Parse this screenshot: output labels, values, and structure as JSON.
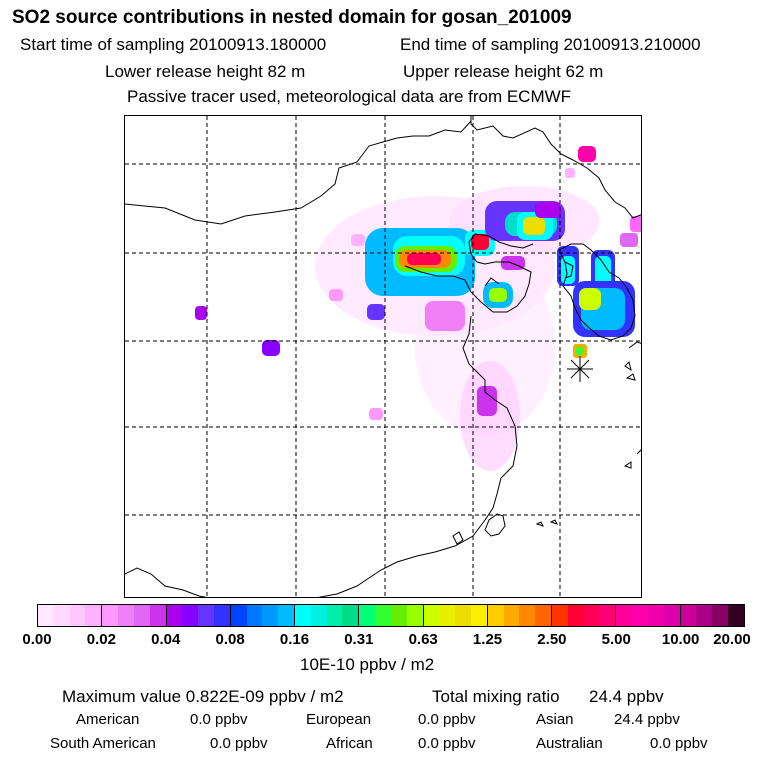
{
  "header": {
    "title": "SO2 source contributions in nested domain for gosan_201009",
    "start": "Start time of sampling 20100913.180000",
    "end": "End time of sampling 20100913.210000",
    "lower_release": "Lower release height   82 m",
    "upper_release": "Upper release height   62 m",
    "tracer_note": "Passive tracer used, meteorological data are from ECMWF"
  },
  "colors": {
    "border": "#000000",
    "coast": "#000000",
    "grid": "#000000",
    "receptor": "#000000",
    "bands": [
      [
        "#ffe8ff",
        "#ffd8ff",
        "#ffc6ff",
        "#ffb2ff"
      ],
      [
        "#ff99ff",
        "#f07ff8",
        "#e066f5",
        "#cc33ee"
      ],
      [
        "#aa00ee",
        "#8800ff",
        "#6633ff",
        "#3333ff"
      ],
      [
        "#0044ff",
        "#0077ff",
        "#0099ff",
        "#00bbff"
      ],
      [
        "#00ffff",
        "#00f0e0",
        "#00eeaa",
        "#00dd88"
      ],
      [
        "#00ff77",
        "#33ff33",
        "#66ee00",
        "#99ff00"
      ],
      [
        "#ccff00",
        "#e6f000",
        "#eedd00",
        "#ffee00"
      ],
      [
        "#ffcc00",
        "#ffaa00",
        "#ff8800",
        "#ff6600"
      ],
      [
        "#ff3300",
        "#ff0033",
        "#ff0055",
        "#ff0077"
      ],
      [
        "#ff0099",
        "#ff00aa",
        "#ee00aa",
        "#dd00aa"
      ],
      [
        "#cc0099",
        "#aa0088",
        "#880066",
        "#330022"
      ]
    ]
  },
  "colorbar": {
    "tick_labels": [
      "0.00",
      "0.02",
      "0.04",
      "0.08",
      "0.16",
      "0.31",
      "0.63",
      "1.25",
      "2.50",
      "5.00",
      "10.00",
      "20.00"
    ],
    "unit": "10E-10 ppbv / m2"
  },
  "stats": {
    "max_value": "Maximum value  0.822E-09 ppbv / m2",
    "total_label": "Total mixing ratio",
    "total_value": "24.4 ppbv",
    "regions": [
      {
        "name": "American",
        "value": "0.0 ppbv"
      },
      {
        "name": "European",
        "value": "0.0 ppbv"
      },
      {
        "name": "Asian",
        "value": "24.4 ppbv"
      },
      {
        "name": "South American",
        "value": "0.0 ppbv"
      },
      {
        "name": "African",
        "value": "0.0 ppbv"
      },
      {
        "name": "Australian",
        "value": "0.0 ppbv"
      }
    ]
  }
}
